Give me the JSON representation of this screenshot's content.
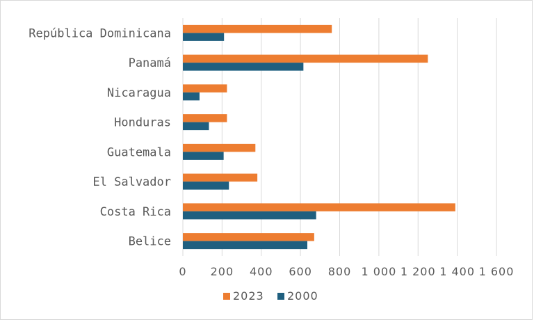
{
  "chart_data": {
    "type": "bar",
    "orientation": "horizontal",
    "title": "",
    "xlabel": "",
    "ylabel": "",
    "categories": [
      "Belice",
      "Costa Rica",
      "El Salvador",
      "Guatemala",
      "Honduras",
      "Nicaragua",
      "Panamá",
      "República Dominicana"
    ],
    "series": [
      {
        "name": "2023",
        "color": "#ed7d31",
        "values": [
          670,
          1390,
          380,
          370,
          225,
          225,
          1250,
          760
        ]
      },
      {
        "name": "2000",
        "color": "#1f5f7f",
        "values": [
          635,
          680,
          235,
          208,
          133,
          85,
          615,
          210
        ]
      }
    ],
    "x_ticks": [
      "0",
      "200",
      "400",
      "600",
      "800",
      "1 000",
      "1 200",
      "1 400",
      "1 600"
    ],
    "x_tick_labels_displayed": [
      "0",
      "200",
      "400",
      "600",
      "800",
      "1 000",
      "1 200",
      "1 400",
      "1 600"
    ],
    "xlim": [
      0,
      1600
    ],
    "grid": "vertical",
    "legend": "bottom"
  }
}
